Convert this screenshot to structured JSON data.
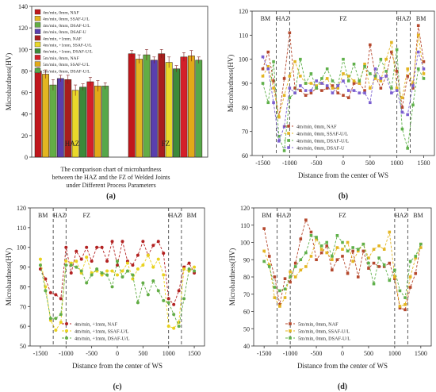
{
  "chart_data": [
    {
      "type": "bar",
      "panel_label": "(a)",
      "ylabel": "Microhardness(HV)",
      "ylim": [
        0,
        140
      ],
      "yticks": [
        0,
        20,
        40,
        60,
        80,
        100,
        120,
        140
      ],
      "categories": [
        "HAZ",
        "FZ"
      ],
      "caption_lines": [
        "The comparison chart of microhardness",
        "between the HAZ and the FZ of Welded Joints",
        "under Different Process Parameters"
      ],
      "legend_position": "top-left",
      "series": [
        {
          "name": "4m/min, 0mm, NAF",
          "color": "#c0161c",
          "values": [
            80,
            96
          ]
        },
        {
          "name": "4m/min, 0mm, SSAF-U/L",
          "color": "#e3b521",
          "values": [
            77,
            91
          ]
        },
        {
          "name": "4m/min, 0mm, DSAF-U/L",
          "color": "#63ad45",
          "values": [
            67,
            95
          ]
        },
        {
          "name": "4m/min, 0mm, DSAF-U",
          "color": "#5a3fae",
          "values": [
            73,
            90
          ]
        },
        {
          "name": "4m/min, +1mm, NAF",
          "color": "#a81e1e",
          "values": [
            72,
            96
          ]
        },
        {
          "name": "4m/min, +1mm, SSAF-U/L",
          "color": "#e9d82a",
          "values": [
            62,
            88
          ]
        },
        {
          "name": "4m/min, +1mm, DSAF-U/L",
          "color": "#3c8a3a",
          "values": [
            65,
            82
          ]
        },
        {
          "name": "5m/min, 0mm, NAF",
          "color": "#d4202a",
          "values": [
            70,
            93
          ]
        },
        {
          "name": "5m/min, 0mm, SSAF-U/L",
          "color": "#e2a918",
          "values": [
            66,
            94
          ]
        },
        {
          "name": "5m/min, 0mm, DSAF-U/L",
          "color": "#56a84a",
          "values": [
            66,
            90
          ]
        }
      ]
    },
    {
      "type": "line",
      "panel_label": "(b)",
      "xlabel": "Distance from the center of WS",
      "ylabel": "Microhardness(HV)",
      "xlim": [
        -1700,
        1700
      ],
      "ylim": [
        60,
        120
      ],
      "xticks": [
        -1500,
        -1000,
        -500,
        0,
        500,
        1000,
        1500
      ],
      "yticks": [
        60,
        70,
        80,
        90,
        100,
        110,
        120
      ],
      "vlines": [
        -1250,
        -1000,
        1000,
        1250
      ],
      "regions": [
        {
          "label": "BM",
          "x": -1450
        },
        {
          "label": "HAZ",
          "x": -1125
        },
        {
          "label": "FZ",
          "x": 0
        },
        {
          "label": "HAZ",
          "x": 1125
        },
        {
          "label": "BM",
          "x": 1450
        }
      ],
      "legend_position": "bottom-left",
      "series": [
        {
          "name": "4m/min, 0mm, NAF",
          "color": "#b5482d",
          "marker": "square",
          "x": [
            -1500,
            -1400,
            -1300,
            -1200,
            -1100,
            -1000,
            -900,
            -800,
            -700,
            -600,
            -500,
            -400,
            -300,
            -200,
            -100,
            0,
            100,
            200,
            300,
            400,
            500,
            600,
            700,
            800,
            900,
            1000,
            1100,
            1200,
            1300,
            1400,
            1500
          ],
          "y": [
            96,
            103,
            91,
            76,
            92,
            111,
            88,
            87,
            85,
            86,
            88,
            87,
            88,
            89,
            86,
            85,
            84,
            90,
            90,
            87,
            106,
            93,
            88,
            93,
            103,
            95,
            80,
            93,
            88,
            114,
            99
          ]
        },
        {
          "name": "4m/min, 0mm, SSAF-U/L",
          "color": "#e3b521",
          "marker": "square",
          "x": [
            -1500,
            -1400,
            -1300,
            -1200,
            -1100,
            -1000,
            -900,
            -800,
            -700,
            -600,
            -500,
            -400,
            -300,
            -200,
            -100,
            0,
            100,
            200,
            300,
            400,
            500,
            600,
            700,
            800,
            900,
            1000,
            1100,
            1200,
            1300,
            1400,
            1500
          ],
          "y": [
            93,
            97,
            88,
            76,
            85,
            93,
            99,
            93,
            90,
            90,
            89,
            90,
            92,
            88,
            88,
            94,
            93,
            91,
            90,
            98,
            88,
            92,
            91,
            100,
            107,
            88,
            84,
            96,
            90,
            110,
            94
          ]
        },
        {
          "name": "4m/min, 0mm, DSAF-U/L",
          "color": "#5fb04a",
          "marker": "square",
          "x": [
            -1500,
            -1400,
            -1300,
            -1200,
            -1100,
            -1000,
            -900,
            -800,
            -700,
            -600,
            -500,
            -400,
            -300,
            -200,
            -100,
            0,
            100,
            200,
            300,
            400,
            500,
            600,
            700,
            800,
            900,
            1000,
            1100,
            1200,
            1300,
            1400,
            1500
          ],
          "y": [
            90,
            82,
            99,
            68,
            62,
            84,
            86,
            100,
            90,
            94,
            88,
            92,
            96,
            91,
            89,
            100,
            91,
            98,
            91,
            97,
            94,
            93,
            100,
            95,
            88,
            104,
            71,
            63,
            81,
            96,
            92
          ]
        },
        {
          "name": "4m/min, 0mm, DSAF-U",
          "color": "#7b5fd0",
          "marker": "square",
          "x": [
            -1500,
            -1400,
            -1300,
            -1200,
            -1100,
            -1000,
            -900,
            -800,
            -700,
            -600,
            -500,
            -400,
            -300,
            -200,
            -100,
            0,
            100,
            200,
            300,
            400,
            500,
            600,
            700,
            800,
            900,
            1000,
            1100,
            1200,
            1300,
            1400,
            1500
          ],
          "y": [
            101,
            96,
            82,
            66,
            72,
            88,
            86,
            89,
            87,
            87,
            91,
            90,
            89,
            86,
            89,
            91,
            87,
            87,
            86,
            86,
            82,
            96,
            92,
            93,
            86,
            87,
            78,
            77,
            89,
            103,
            96
          ]
        }
      ]
    },
    {
      "type": "line",
      "panel_label": "(c)",
      "xlabel": "Distance from the center of WS",
      "ylabel": "Microhardness(HV)",
      "xlim": [
        -1700,
        1700
      ],
      "ylim": [
        50,
        120
      ],
      "xticks": [
        -1500,
        -1000,
        -500,
        0,
        500,
        1000,
        1500
      ],
      "yticks": [
        50,
        60,
        70,
        80,
        90,
        100,
        110,
        120
      ],
      "vlines": [
        -1250,
        -1000,
        1000,
        1250
      ],
      "regions": [
        {
          "label": "BM",
          "x": -1450
        },
        {
          "label": "HAZ",
          "x": -1125
        },
        {
          "label": "FZ",
          "x": -600
        },
        {
          "label": "HAZ",
          "x": 1125
        },
        {
          "label": "BM",
          "x": 1450
        }
      ],
      "legend_position": "bottom-left",
      "series": [
        {
          "name": "4m/min, +1mm, NAF",
          "color": "#b32222",
          "marker": "circle",
          "x": [
            -1500,
            -1400,
            -1300,
            -1200,
            -1100,
            -1000,
            -900,
            -800,
            -700,
            -600,
            -500,
            -400,
            -300,
            -200,
            -100,
            0,
            100,
            200,
            300,
            400,
            500,
            600,
            700,
            800,
            900,
            1000,
            1100,
            1200,
            1300,
            1400,
            1500
          ],
          "y": [
            89,
            84,
            77,
            76,
            74,
            100,
            87,
            98,
            94,
            100,
            93,
            100,
            100,
            93,
            103,
            91,
            103,
            93,
            91,
            96,
            103,
            96,
            101,
            103,
            97,
            74,
            71,
            78,
            90,
            92,
            87
          ]
        },
        {
          "name": "4m/min, +1mm, SSAF-U/L",
          "color": "#e9d21e",
          "marker": "circle",
          "x": [
            -1500,
            -1400,
            -1300,
            -1200,
            -1100,
            -1000,
            -900,
            -800,
            -700,
            -600,
            -500,
            -400,
            -300,
            -200,
            -100,
            0,
            100,
            200,
            300,
            400,
            500,
            600,
            700,
            800,
            900,
            1000,
            1100,
            1200,
            1300,
            1400,
            1500
          ],
          "y": [
            94,
            80,
            63,
            58,
            62,
            93,
            92,
            93,
            87,
            95,
            87,
            88,
            86,
            88,
            88,
            86,
            88,
            92,
            84,
            89,
            91,
            96,
            90,
            94,
            86,
            60,
            59,
            62,
            89,
            88,
            90
          ]
        },
        {
          "name": "4m/min, +1mm, DSAF-U/L",
          "color": "#62ad46",
          "marker": "circle",
          "x": [
            -1500,
            -1400,
            -1300,
            -1200,
            -1100,
            -1000,
            -900,
            -800,
            -700,
            -600,
            -500,
            -400,
            -300,
            -200,
            -100,
            0,
            100,
            200,
            300,
            400,
            500,
            600,
            700,
            800,
            900,
            1000,
            1100,
            1200,
            1300,
            1400,
            1500
          ],
          "y": [
            91,
            78,
            64,
            64,
            66,
            91,
            91,
            90,
            88,
            82,
            86,
            89,
            87,
            86,
            80,
            93,
            85,
            88,
            86,
            72,
            82,
            76,
            83,
            78,
            73,
            72,
            66,
            60,
            74,
            89,
            88
          ]
        }
      ]
    },
    {
      "type": "line",
      "panel_label": "(d)",
      "xlabel": "Distance from the center of WS",
      "ylabel": "Microhardness(HV)",
      "xlim": [
        -1700,
        1700
      ],
      "ylim": [
        40,
        120
      ],
      "xticks": [
        -1500,
        -1000,
        -500,
        0,
        500,
        1000,
        1500
      ],
      "yticks": [
        40,
        50,
        60,
        70,
        80,
        90,
        100,
        110,
        120
      ],
      "vlines": [
        -1250,
        -1000,
        1000,
        1250
      ],
      "regions": [
        {
          "label": "BM",
          "x": -1450
        },
        {
          "label": "HAZ",
          "x": -1125
        },
        {
          "label": "FZ",
          "x": 0
        },
        {
          "label": "HAZ",
          "x": 1125
        },
        {
          "label": "BM",
          "x": 1450
        }
      ],
      "legend_position": "bottom-left",
      "series": [
        {
          "name": "5m/min, 0mm, NAF",
          "color": "#b5482d",
          "marker": "square",
          "x": [
            -1500,
            -1400,
            -1300,
            -1200,
            -1100,
            -1000,
            -900,
            -800,
            -700,
            -600,
            -500,
            -400,
            -300,
            -200,
            -100,
            0,
            100,
            200,
            300,
            400,
            500,
            600,
            700,
            800,
            900,
            1000,
            1100,
            1200,
            1300,
            1400,
            1500
          ],
          "y": [
            108,
            92,
            80,
            64,
            79,
            77,
            88,
            102,
            113,
            106,
            90,
            94,
            98,
            84,
            90,
            92,
            82,
            95,
            80,
            95,
            85,
            88,
            86,
            86,
            88,
            79,
            62,
            61,
            74,
            82,
            99
          ]
        },
        {
          "name": "5m/min, 0mm, SSAF-U/L",
          "color": "#e3b521",
          "marker": "square",
          "x": [
            -1500,
            -1400,
            -1300,
            -1200,
            -1100,
            -1000,
            -900,
            -800,
            -700,
            -600,
            -500,
            -400,
            -300,
            -200,
            -100,
            0,
            100,
            200,
            300,
            400,
            500,
            600,
            700,
            800,
            900,
            1000,
            1100,
            1200,
            1300,
            1400,
            1500
          ],
          "y": [
            95,
            87,
            68,
            63,
            68,
            83,
            80,
            84,
            86,
            92,
            102,
            96,
            94,
            90,
            97,
            96,
            100,
            89,
            95,
            99,
            91,
            96,
            98,
            96,
            106,
            80,
            63,
            64,
            80,
            91,
            97
          ]
        },
        {
          "name": "5m/min, 0mm, DSAF-U/L",
          "color": "#5fb04a",
          "marker": "square",
          "x": [
            -1500,
            -1400,
            -1300,
            -1200,
            -1100,
            -1000,
            -900,
            -800,
            -700,
            -600,
            -500,
            -400,
            -300,
            -200,
            -100,
            0,
            100,
            200,
            300,
            400,
            500,
            600,
            700,
            800,
            900,
            1000,
            1100,
            1200,
            1300,
            1400,
            1500
          ],
          "y": [
            89,
            86,
            74,
            72,
            73,
            80,
            86,
            90,
            94,
            104,
            103,
            98,
            100,
            92,
            104,
            100,
            95,
            97,
            96,
            99,
            88,
            76,
            91,
            87,
            78,
            84,
            72,
            68,
            89,
            92,
            99
          ]
        }
      ]
    }
  ]
}
